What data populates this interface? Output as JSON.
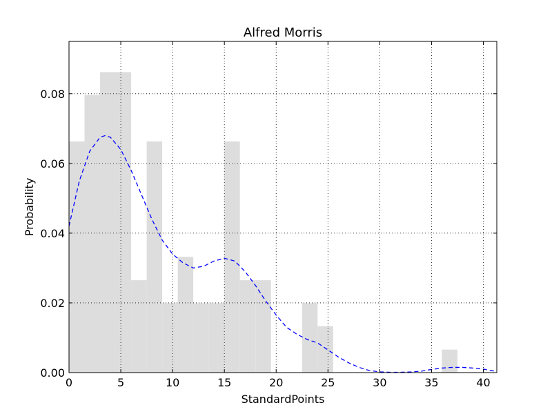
{
  "chart_data": {
    "type": "bar",
    "title": "Alfred Morris",
    "xlabel": "StandardPoints",
    "ylabel": "Probability",
    "xlim": [
      0,
      41.3
    ],
    "ylim": [
      0,
      0.095
    ],
    "grid": true,
    "xticks": [
      0,
      5,
      10,
      15,
      20,
      25,
      30,
      35,
      40
    ],
    "yticks": [
      0.0,
      0.02,
      0.04,
      0.06,
      0.08
    ],
    "xtick_labels": [
      "0",
      "5",
      "10",
      "15",
      "20",
      "25",
      "30",
      "35",
      "40"
    ],
    "ytick_labels": [
      "0.00",
      "0.02",
      "0.04",
      "0.06",
      "0.08"
    ],
    "bar_color": "#dddddd",
    "kde_color": "#0000ff",
    "histogram": {
      "bin_edges": [
        0,
        1.5,
        3,
        4.5,
        6,
        7.5,
        9,
        10.5,
        12,
        13.5,
        15,
        16.5,
        18,
        19.5,
        21,
        22.5,
        24,
        25.5,
        27,
        28.5,
        30,
        31.5,
        33,
        34.5,
        36,
        37.5,
        39,
        40.5
      ],
      "values": [
        0.0663,
        0.0796,
        0.0862,
        0.0862,
        0.0265,
        0.0663,
        0.0199,
        0.0332,
        0.0199,
        0.0199,
        0.0663,
        0.0265,
        0.0265,
        0,
        0,
        0.0199,
        0.0133,
        0,
        0,
        0,
        0,
        0,
        0,
        0,
        0.0066,
        0,
        0
      ]
    },
    "kde": {
      "x": [
        0,
        1,
        2,
        3,
        3.5,
        4,
        5,
        6,
        7,
        8,
        9,
        10,
        11,
        12,
        13,
        14,
        15,
        16,
        17,
        18,
        19,
        20,
        21,
        22,
        23,
        24,
        25,
        26,
        27,
        28,
        29,
        30,
        31,
        32,
        33,
        34,
        35,
        36,
        37,
        38,
        39,
        40,
        41.3
      ],
      "y": [
        0.042,
        0.055,
        0.0635,
        0.0675,
        0.068,
        0.0675,
        0.064,
        0.058,
        0.051,
        0.044,
        0.038,
        0.034,
        0.0315,
        0.03,
        0.0305,
        0.032,
        0.0328,
        0.032,
        0.029,
        0.025,
        0.0205,
        0.0165,
        0.013,
        0.011,
        0.0095,
        0.0085,
        0.0065,
        0.0045,
        0.0028,
        0.0015,
        0.0006,
        0.0002,
        0.0001,
        0.0001,
        0.0002,
        0.0004,
        0.0009,
        0.0013,
        0.0015,
        0.0015,
        0.0013,
        0.001,
        0.0003
      ]
    }
  }
}
